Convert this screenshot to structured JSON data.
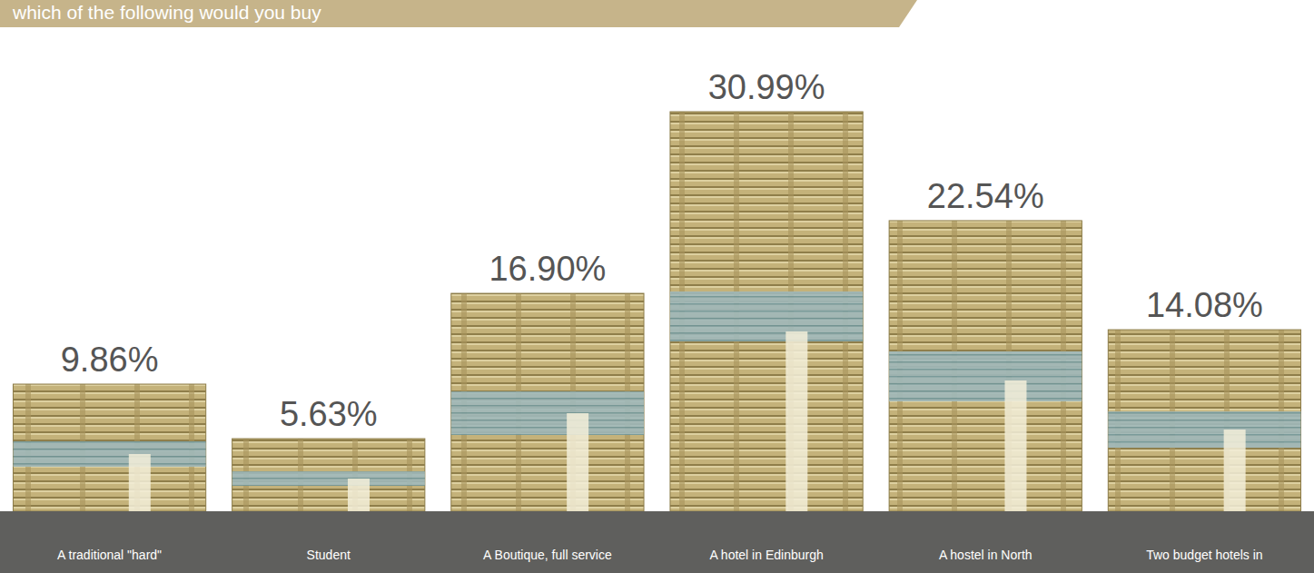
{
  "chart_data": {
    "type": "bar",
    "title": "which of the following would you buy",
    "categories": [
      "A traditional \"hard\"",
      "Student",
      "A Boutique, full service",
      "A hotel in Edinburgh",
      "A hostel in North",
      "Two budget hotels in"
    ],
    "values": [
      9.86,
      5.63,
      16.9,
      30.99,
      22.54,
      14.08
    ],
    "value_labels": [
      "9.86%",
      "5.63%",
      "16.90%",
      "30.99%",
      "22.54%",
      "14.08%"
    ],
    "data_labels": true,
    "tick_labels": "x",
    "grid": false,
    "color": "#c4b27a"
  }
}
